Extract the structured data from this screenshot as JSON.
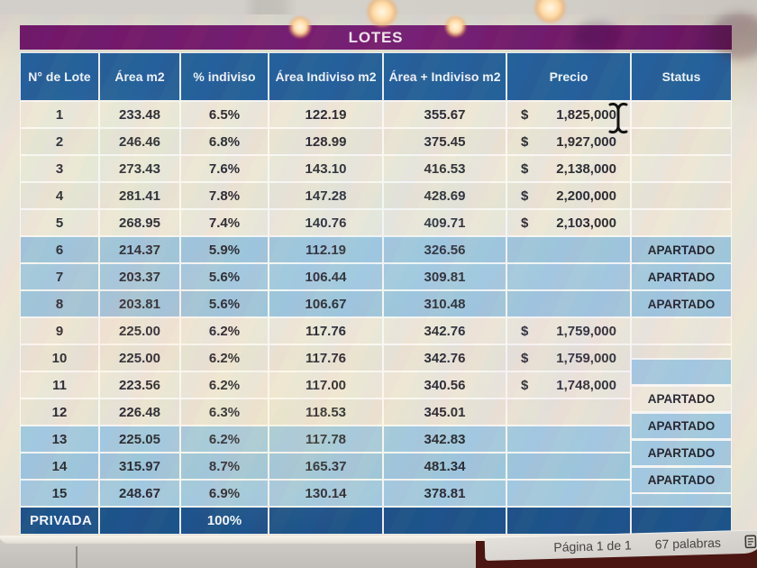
{
  "title": "LOTES",
  "table": {
    "columns": [
      "N° de Lote",
      "Área m2",
      "% indiviso",
      "Área Indiviso m2",
      "Área + Indiviso m2",
      "Precio",
      "Status"
    ],
    "rows": [
      {
        "n": "1",
        "area": "233.48",
        "pct": "6.5%",
        "ind": "122.19",
        "tot": "355.67",
        "cur": "$",
        "precio": "1,825,000",
        "status": "",
        "hl": false,
        "chip": ""
      },
      {
        "n": "2",
        "area": "246.46",
        "pct": "6.8%",
        "ind": "128.99",
        "tot": "375.45",
        "cur": "$",
        "precio": "1,927,000",
        "status": "",
        "hl": false,
        "chip": ""
      },
      {
        "n": "3",
        "area": "273.43",
        "pct": "7.6%",
        "ind": "143.10",
        "tot": "416.53",
        "cur": "$",
        "precio": "2,138,000",
        "status": "",
        "hl": false,
        "chip": ""
      },
      {
        "n": "4",
        "area": "281.41",
        "pct": "7.8%",
        "ind": "147.28",
        "tot": "428.69",
        "cur": "$",
        "precio": "2,200,000",
        "status": "",
        "hl": false,
        "chip": ""
      },
      {
        "n": "5",
        "area": "268.95",
        "pct": "7.4%",
        "ind": "140.76",
        "tot": "409.71",
        "cur": "$",
        "precio": "2,103,000",
        "status": "",
        "hl": false,
        "chip": ""
      },
      {
        "n": "6",
        "area": "214.37",
        "pct": "5.9%",
        "ind": "112.19",
        "tot": "326.56",
        "cur": "",
        "precio": "",
        "status": "APARTADO",
        "hl": true,
        "chip": "row"
      },
      {
        "n": "7",
        "area": "203.37",
        "pct": "5.6%",
        "ind": "106.44",
        "tot": "309.81",
        "cur": "",
        "precio": "",
        "status": "APARTADO",
        "hl": true,
        "chip": "row"
      },
      {
        "n": "8",
        "area": "203.81",
        "pct": "5.6%",
        "ind": "106.67",
        "tot": "310.48",
        "cur": "",
        "precio": "",
        "status": "APARTADO",
        "hl": true,
        "chip": "row"
      },
      {
        "n": "9",
        "area": "225.00",
        "pct": "6.2%",
        "ind": "117.76",
        "tot": "342.76",
        "cur": "$",
        "precio": "1,759,000",
        "status": "",
        "hl": false,
        "chip": ""
      },
      {
        "n": "10",
        "area": "225.00",
        "pct": "6.2%",
        "ind": "117.76",
        "tot": "342.76",
        "cur": "$",
        "precio": "1,759,000",
        "status": "",
        "hl": false,
        "chip": ""
      },
      {
        "n": "11",
        "area": "223.56",
        "pct": "6.2%",
        "ind": "117.00",
        "tot": "340.56",
        "cur": "$",
        "precio": "1,748,000",
        "status": "",
        "hl": false,
        "chip": "blue-offset-empty"
      },
      {
        "n": "12",
        "area": "226.48",
        "pct": "6.3%",
        "ind": "118.53",
        "tot": "345.01",
        "cur": "",
        "precio": "",
        "status": "APARTADO",
        "hl": false,
        "chip": "white-offset"
      },
      {
        "n": "13",
        "area": "225.05",
        "pct": "6.2%",
        "ind": "117.78",
        "tot": "342.83",
        "cur": "",
        "precio": "",
        "status": "APARTADO",
        "hl": true,
        "chip": "blue-offset"
      },
      {
        "n": "14",
        "area": "315.97",
        "pct": "8.7%",
        "ind": "165.37",
        "tot": "481.34",
        "cur": "",
        "precio": "",
        "status": "APARTADO",
        "hl": true,
        "chip": "blue-offset"
      },
      {
        "n": "15",
        "area": "248.67",
        "pct": "6.9%",
        "ind": "130.14",
        "tot": "378.81",
        "cur": "",
        "precio": "",
        "status": "APARTADO",
        "hl": true,
        "chip": "blue-offset"
      }
    ],
    "privada": {
      "label": "PRIVADA",
      "pct": "100%"
    }
  },
  "statusbar": {
    "page": "Página 1 de 1",
    "words": "67 palabras",
    "icon": "proofing-book-icon"
  },
  "colors": {
    "title_bg": "#6d1165",
    "header_bg": "#1f5c97",
    "reserved_row": "#a2c8de",
    "privada_bg": "#174e87",
    "row_bg": "#ede7d8"
  }
}
